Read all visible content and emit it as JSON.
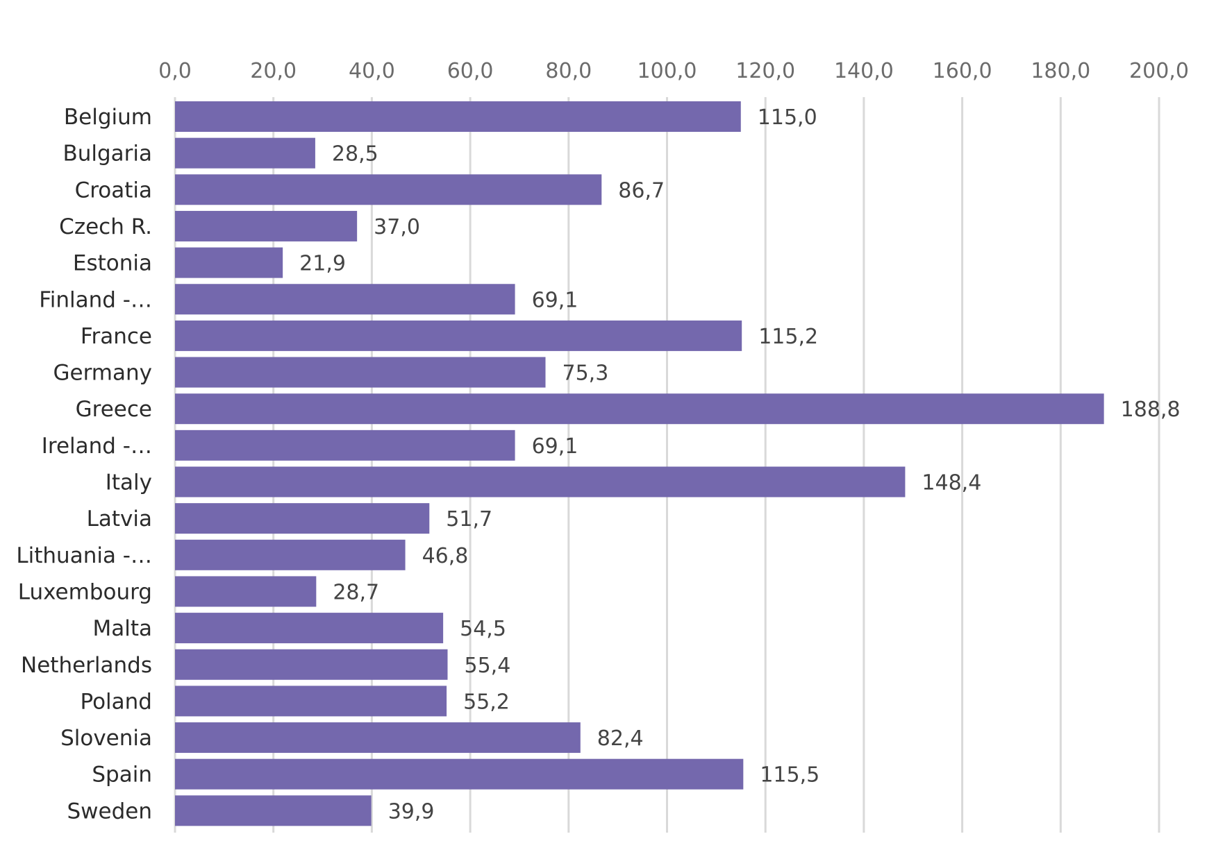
{
  "colors": {
    "bar": "#7468ad",
    "gridline": "#d9d9d9",
    "tick_text": "#6b6b6b",
    "category_text": "#2b2b2b",
    "value_text": "#444444"
  },
  "chart_data": {
    "type": "bar",
    "orientation": "horizontal",
    "title": "",
    "xlabel": "",
    "ylabel": "",
    "xaxis_position": "top",
    "grid": true,
    "legend": false,
    "xlim": [
      0,
      200
    ],
    "ticks": [
      "0,0",
      "20,0",
      "40,0",
      "60,0",
      "80,0",
      "100,0",
      "120,0",
      "140,0",
      "160,0",
      "180,0",
      "200,0"
    ],
    "tick_values": [
      0,
      20,
      40,
      60,
      80,
      100,
      120,
      140,
      160,
      180,
      200
    ],
    "categories": [
      "Belgium",
      "Bulgaria",
      "Croatia",
      "Czech R.",
      "Estonia",
      "Finland -…",
      "France",
      "Germany",
      "Greece",
      "Ireland -…",
      "Italy",
      "Latvia",
      "Lithuania -…",
      "Luxembourg",
      "Malta",
      "Netherlands",
      "Poland",
      "Slovenia",
      "Spain",
      "Sweden"
    ],
    "values": [
      115.0,
      28.5,
      86.7,
      37.0,
      21.9,
      69.1,
      115.2,
      75.3,
      188.8,
      69.1,
      148.4,
      51.7,
      46.8,
      28.7,
      54.5,
      55.4,
      55.2,
      82.4,
      115.5,
      39.9
    ],
    "value_labels": [
      "115,0",
      "28,5",
      "86,7",
      "37,0",
      "21,9",
      "69,1",
      "115,2",
      "75,3",
      "188,8",
      "69,1",
      "148,4",
      "51,7",
      "46,8",
      "28,7",
      "54,5",
      "55,4",
      "55,2",
      "82,4",
      "115,5",
      "39,9"
    ]
  }
}
